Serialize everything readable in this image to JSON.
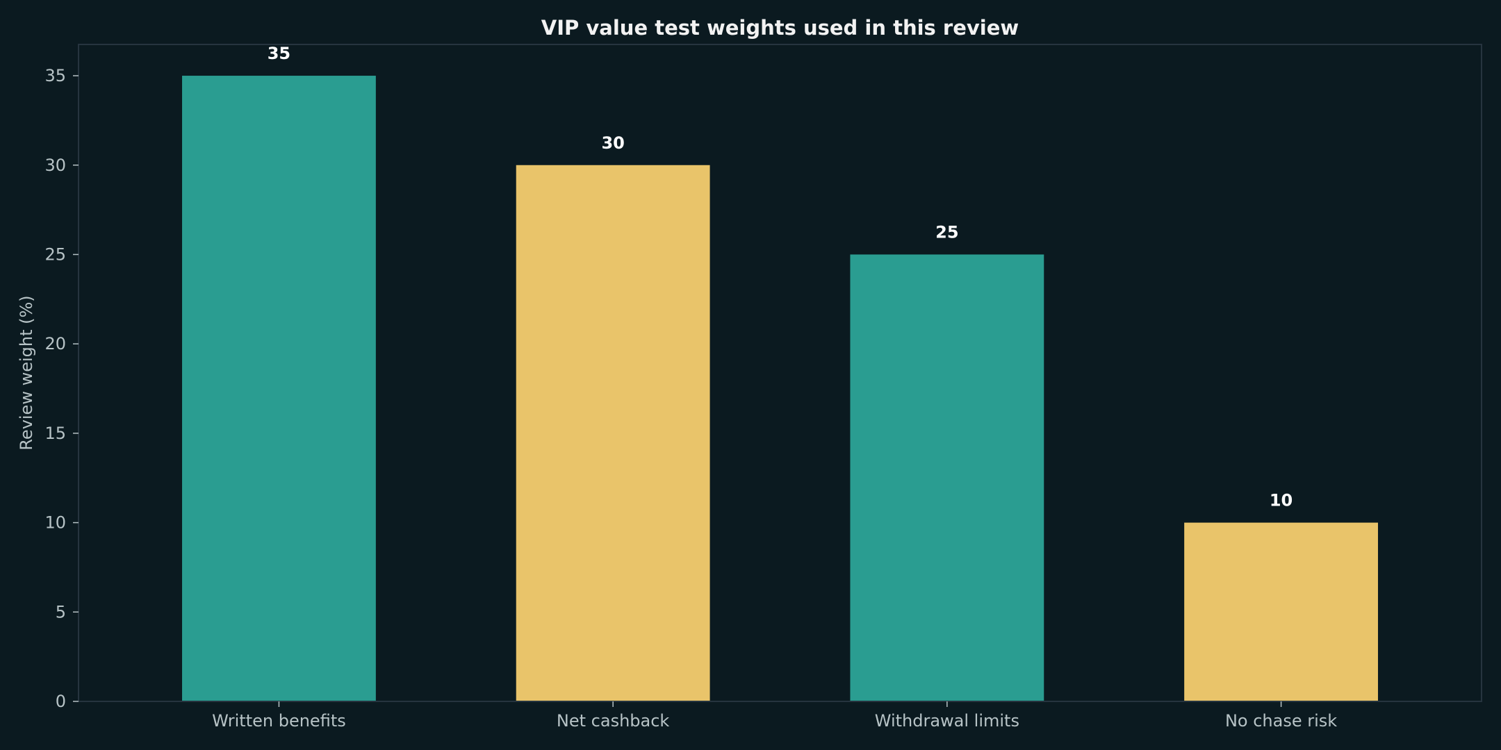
{
  "chart_data": {
    "type": "bar",
    "title": "VIP value test weights used in this review",
    "xlabel": "",
    "ylabel": "Review weight (%)",
    "categories": [
      "Written benefits",
      "Net cashback",
      "Withdrawal limits",
      "No chase risk"
    ],
    "values": [
      35,
      30,
      25,
      10
    ],
    "data_labels": [
      "35",
      "30",
      "25",
      "10"
    ],
    "bar_colors": [
      "#2a9d91",
      "#e9c46a",
      "#2a9d91",
      "#e9c46a"
    ],
    "ylim": [
      0,
      36.75
    ],
    "yticks": [
      0,
      5,
      10,
      15,
      20,
      25,
      30,
      35
    ],
    "ytick_labels": [
      "0",
      "5",
      "10",
      "15",
      "20",
      "25",
      "30",
      "35"
    ],
    "grid": false,
    "legend": "none"
  },
  "colors": {
    "background": "#0b1a20",
    "plot_background": "#0b1a20",
    "frame": "#26343f",
    "title": "#f2f2f2",
    "tick_text": "#b7c3c6",
    "axis_label": "#b7c3c6",
    "data_label": "#ffffff"
  }
}
